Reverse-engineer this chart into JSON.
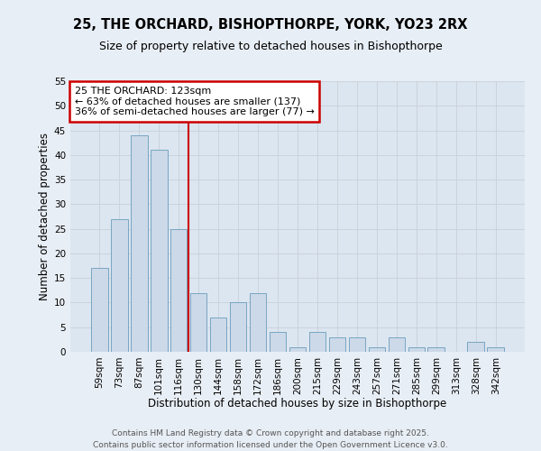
{
  "title_line1": "25, THE ORCHARD, BISHOPTHORPE, YORK, YO23 2RX",
  "title_line2": "Size of property relative to detached houses in Bishopthorpe",
  "xlabel": "Distribution of detached houses by size in Bishopthorpe",
  "ylabel": "Number of detached properties",
  "categories": [
    "59sqm",
    "73sqm",
    "87sqm",
    "101sqm",
    "116sqm",
    "130sqm",
    "144sqm",
    "158sqm",
    "172sqm",
    "186sqm",
    "200sqm",
    "215sqm",
    "229sqm",
    "243sqm",
    "257sqm",
    "271sqm",
    "285sqm",
    "299sqm",
    "313sqm",
    "328sqm",
    "342sqm"
  ],
  "values": [
    17,
    27,
    44,
    41,
    25,
    12,
    7,
    10,
    12,
    4,
    1,
    4,
    3,
    3,
    1,
    3,
    1,
    1,
    0,
    2,
    1
  ],
  "bar_color": "#ccd9e8",
  "bar_edge_color": "#6a9cbd",
  "red_line_x": 4.5,
  "annotation_text": "25 THE ORCHARD: 123sqm\n← 63% of detached houses are smaller (137)\n36% of semi-detached houses are larger (77) →",
  "annotation_box_color": "#ffffff",
  "annotation_box_edge_color": "#cc0000",
  "ylim": [
    0,
    55
  ],
  "yticks": [
    0,
    5,
    10,
    15,
    20,
    25,
    30,
    35,
    40,
    45,
    50,
    55
  ],
  "grid_color": "#c8d0d8",
  "bg_color": "#dce6f0",
  "fig_bg_color": "#e8eef5",
  "footer_line1": "Contains HM Land Registry data © Crown copyright and database right 2025.",
  "footer_line2": "Contains public sector information licensed under the Open Government Licence v3.0.",
  "title_fontsize": 10.5,
  "subtitle_fontsize": 9,
  "axis_label_fontsize": 8.5,
  "tick_fontsize": 7.5,
  "annotation_fontsize": 8,
  "footer_fontsize": 6.5
}
